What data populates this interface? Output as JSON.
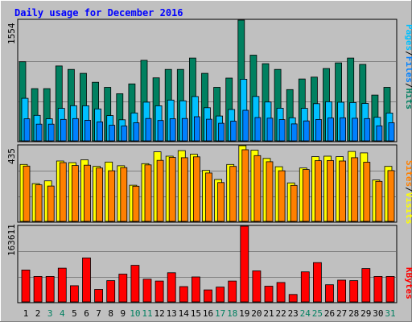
{
  "chart_data": {
    "type": "bar",
    "title": "Daily usage for December 2016",
    "categories": [
      "1",
      "2",
      "3",
      "4",
      "5",
      "6",
      "7",
      "8",
      "9",
      "10",
      "11",
      "12",
      "13",
      "14",
      "15",
      "16",
      "17",
      "18",
      "19",
      "20",
      "21",
      "22",
      "23",
      "24",
      "25",
      "26",
      "27",
      "28",
      "29",
      "30",
      "31"
    ],
    "weekend_days": [
      "3",
      "4",
      "10",
      "11",
      "17",
      "18",
      "24",
      "25",
      "31"
    ],
    "legend_top": [
      "Pages",
      "/",
      "Files",
      "/",
      "Hits"
    ],
    "legend_mid": [
      "Sites",
      "/",
      "Visits"
    ],
    "legend_bot": [
      "KBytes"
    ],
    "max_top": "1554",
    "max_mid": "435",
    "max_bot": "163611",
    "ylim_top": [
      0,
      1554
    ],
    "ylim_mid": [
      0,
      435
    ],
    "ylim_bot": [
      0,
      163611
    ],
    "series": {
      "hits": [
        1018,
        672,
        672,
        965,
        920,
        869,
        754,
        689,
        607,
        733,
        1037,
        811,
        920,
        920,
        1066,
        869,
        689,
        808,
        1554,
        1103,
        994,
        920,
        660,
        797,
        820,
        931,
        1004,
        1066,
        984,
        590,
        689
      ],
      "files": [
        548,
        328,
        284,
        419,
        453,
        452,
        411,
        325,
        271,
        360,
        498,
        452,
        525,
        516,
        571,
        427,
        320,
        404,
        794,
        572,
        500,
        421,
        297,
        419,
        479,
        503,
        497,
        493,
        482,
        304,
        358
      ],
      "pages": [
        284,
        215,
        215,
        277,
        287,
        265,
        245,
        201,
        191,
        233,
        288,
        262,
        285,
        288,
        311,
        279,
        227,
        254,
        394,
        300,
        292,
        274,
        219,
        257,
        276,
        294,
        297,
        291,
        287,
        194,
        233
      ],
      "visits": [
        327,
        217,
        233,
        347,
        338,
        354,
        316,
        341,
        320,
        208,
        332,
        400,
        375,
        407,
        386,
        293,
        241,
        327,
        435,
        409,
        362,
        314,
        221,
        307,
        372,
        375,
        372,
        402,
        394,
        238,
        316
      ],
      "sites": [
        318,
        210,
        203,
        338,
        321,
        323,
        307,
        291,
        309,
        202,
        325,
        351,
        368,
        366,
        371,
        278,
        223,
        316,
        412,
        378,
        343,
        291,
        207,
        298,
        349,
        350,
        347,
        366,
        340,
        230,
        292
      ],
      "kbytes": [
        69000,
        55000,
        55000,
        73000,
        35000,
        95000,
        27000,
        46000,
        60000,
        79000,
        49000,
        45000,
        63000,
        33000,
        54000,
        26000,
        32000,
        45000,
        163611,
        67000,
        34000,
        42000,
        16000,
        65000,
        85000,
        37000,
        47000,
        46000,
        72000,
        55000,
        55000
      ]
    },
    "colors": {
      "hits": "#008060",
      "files": "#00c0ff",
      "pages": "#0080ff",
      "visits": "#ffff00",
      "sites": "#ff8000",
      "kbytes": "#ff0000",
      "title": "#0000ff",
      "panel_bg": "#c0c0c0",
      "frame_bg": "#c0c0c0"
    }
  }
}
